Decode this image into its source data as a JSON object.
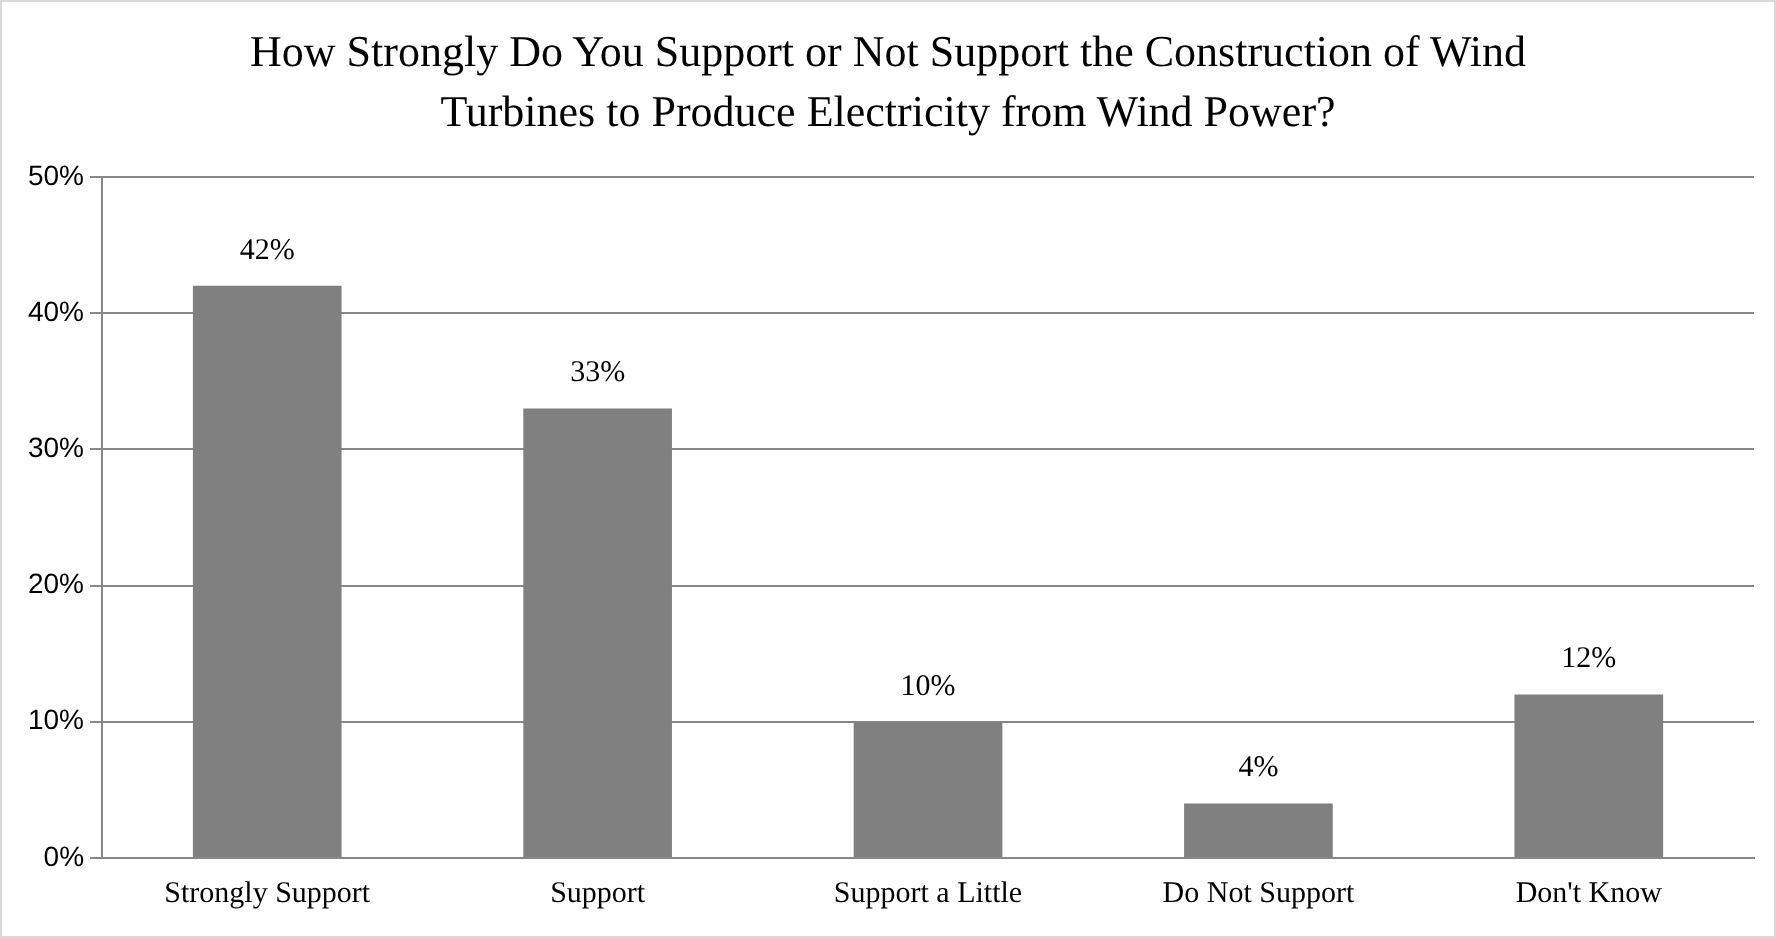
{
  "chart_data": {
    "type": "bar",
    "title": "How Strongly Do You Support or Not Support the Construction of Wind Turbines to Produce Electricity from Wind Power?",
    "categories": [
      "Strongly Support",
      "Support",
      "Support a Little",
      "Do Not Support",
      "Don't Know"
    ],
    "values": [
      42,
      33,
      10,
      4,
      12
    ],
    "value_labels": [
      "42%",
      "33%",
      "10%",
      "4%",
      "12%"
    ],
    "color": "#808080",
    "ylim": [
      0,
      50
    ],
    "yticks": [
      {
        "value": 0,
        "label": "0%"
      },
      {
        "value": 10,
        "label": "10%"
      },
      {
        "value": 20,
        "label": "20%"
      },
      {
        "value": 30,
        "label": "30%"
      },
      {
        "value": 40,
        "label": "40%"
      },
      {
        "value": 50,
        "label": "50%"
      }
    ],
    "grid": "y",
    "legend": false
  }
}
